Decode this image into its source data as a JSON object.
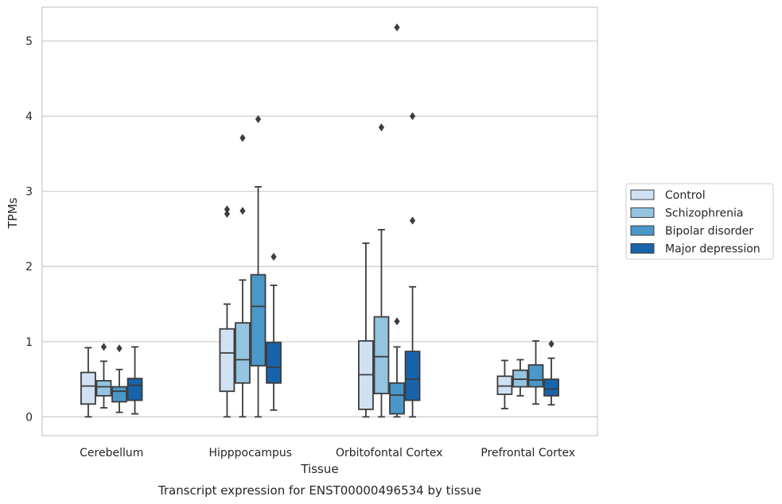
{
  "caption": "Transcript expression for ENST00000496534 by tissue",
  "chart_data": {
    "type": "boxplot",
    "xlabel": "Tissue",
    "ylabel": "TPMs",
    "ylim": [
      -0.25,
      5.45
    ],
    "yticks": [
      0,
      1,
      2,
      3,
      4,
      5
    ],
    "grid": "horizontal",
    "legend_position": "right",
    "categories": [
      "Cerebellum",
      "Hipppocampus",
      "Orbitofontal Cortex",
      "Prefrontal Cortex"
    ],
    "series": [
      {
        "name": "Control",
        "color": "#d0e1f2",
        "boxes": [
          {
            "whislo": 0.0,
            "q1": 0.17,
            "med": 0.41,
            "q3": 0.59,
            "whishi": 0.92,
            "fliers": []
          },
          {
            "whislo": 0.0,
            "q1": 0.34,
            "med": 0.85,
            "q3": 1.17,
            "whishi": 1.5,
            "fliers": [
              2.7,
              2.76
            ]
          },
          {
            "whislo": 0.0,
            "q1": 0.1,
            "med": 0.56,
            "q3": 1.01,
            "whishi": 2.31,
            "fliers": []
          },
          {
            "whislo": 0.11,
            "q1": 0.3,
            "med": 0.41,
            "q3": 0.54,
            "whishi": 0.75,
            "fliers": []
          }
        ]
      },
      {
        "name": "Schizophrenia",
        "color": "#94c4df",
        "boxes": [
          {
            "whislo": 0.12,
            "q1": 0.28,
            "med": 0.4,
            "q3": 0.48,
            "whishi": 0.74,
            "fliers": [
              0.93
            ]
          },
          {
            "whislo": 0.0,
            "q1": 0.45,
            "med": 0.76,
            "q3": 1.25,
            "whishi": 1.82,
            "fliers": [
              2.74,
              3.71
            ]
          },
          {
            "whislo": 0.0,
            "q1": 0.31,
            "med": 0.8,
            "q3": 1.33,
            "whishi": 2.49,
            "fliers": [
              3.85
            ]
          },
          {
            "whislo": 0.28,
            "q1": 0.4,
            "med": 0.5,
            "q3": 0.62,
            "whishi": 0.76,
            "fliers": []
          }
        ]
      },
      {
        "name": "Bipolar disorder",
        "color": "#4a98c9",
        "boxes": [
          {
            "whislo": 0.06,
            "q1": 0.2,
            "med": 0.34,
            "q3": 0.4,
            "whishi": 0.63,
            "fliers": [
              0.91
            ]
          },
          {
            "whislo": 0.0,
            "q1": 0.68,
            "med": 1.47,
            "q3": 1.89,
            "whishi": 3.06,
            "fliers": [
              3.96
            ]
          },
          {
            "whislo": 0.0,
            "q1": 0.04,
            "med": 0.29,
            "q3": 0.45,
            "whishi": 0.93,
            "fliers": [
              1.27,
              5.18
            ]
          },
          {
            "whislo": 0.17,
            "q1": 0.4,
            "med": 0.49,
            "q3": 0.69,
            "whishi": 1.01,
            "fliers": []
          }
        ]
      },
      {
        "name": "Major depression",
        "color": "#1764ab",
        "boxes": [
          {
            "whislo": 0.04,
            "q1": 0.22,
            "med": 0.42,
            "q3": 0.51,
            "whishi": 0.93,
            "fliers": []
          },
          {
            "whislo": 0.09,
            "q1": 0.45,
            "med": 0.66,
            "q3": 0.99,
            "whishi": 1.75,
            "fliers": [
              2.13
            ]
          },
          {
            "whislo": 0.0,
            "q1": 0.22,
            "med": 0.5,
            "q3": 0.87,
            "whishi": 1.73,
            "fliers": [
              2.61,
              4.0
            ]
          },
          {
            "whislo": 0.16,
            "q1": 0.28,
            "med": 0.37,
            "q3": 0.5,
            "whishi": 0.78,
            "fliers": [
              0.97
            ]
          }
        ]
      }
    ]
  }
}
